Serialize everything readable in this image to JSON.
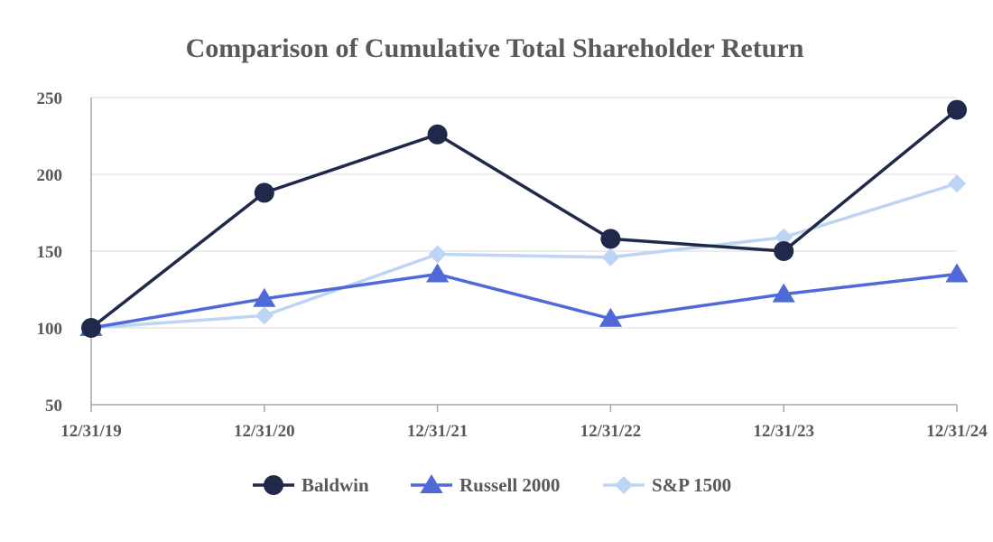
{
  "chart_data": {
    "type": "line",
    "title": "Comparison of Cumulative Total Shareholder Return",
    "xlabel": "",
    "ylabel": "",
    "categories": [
      "12/31/19",
      "12/31/20",
      "12/31/21",
      "12/31/22",
      "12/31/23",
      "12/31/24"
    ],
    "ylim": [
      50,
      250
    ],
    "yticks": [
      50,
      100,
      150,
      200,
      250
    ],
    "grid": true,
    "legend_position": "bottom",
    "series": [
      {
        "name": "Baldwin",
        "values": [
          100,
          188,
          226,
          158,
          150,
          242
        ],
        "color": "#1f2a4a",
        "marker": "circle"
      },
      {
        "name": "Russell 2000",
        "values": [
          100,
          119,
          135,
          106,
          122,
          135
        ],
        "color": "#4f6ad8",
        "marker": "triangle"
      },
      {
        "name": "S&P 1500",
        "values": [
          100,
          108,
          148,
          146,
          159,
          194
        ],
        "color": "#bcd5f5",
        "marker": "diamond"
      }
    ]
  }
}
